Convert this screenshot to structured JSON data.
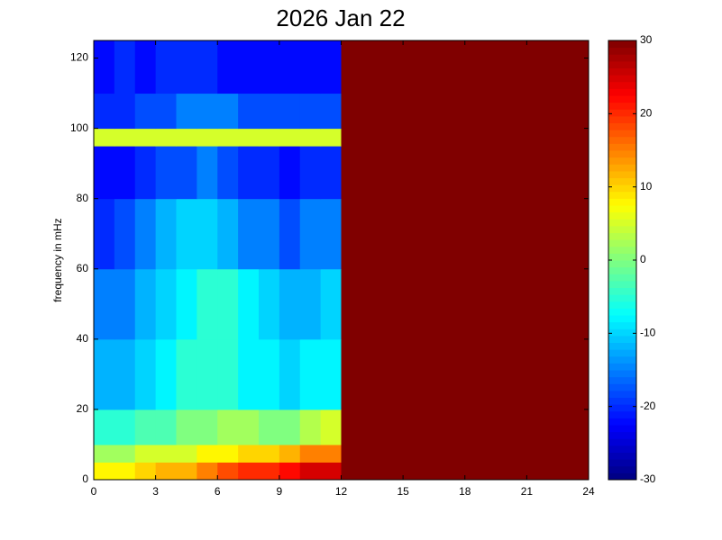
{
  "chart_data": {
    "type": "heatmap",
    "title": "2026 Jan 22",
    "ylabel": "frequency in mHz",
    "colormap": "jet",
    "x": [
      0,
      1,
      2,
      3,
      4,
      5,
      6,
      7,
      8,
      9,
      10,
      11,
      12,
      13,
      14,
      15,
      16,
      17,
      18,
      19,
      20,
      21,
      22,
      23,
      24
    ],
    "y": [
      0,
      5,
      10,
      20,
      40,
      60,
      80,
      95,
      100,
      110,
      125
    ],
    "z": [
      [
        8,
        8,
        10,
        12,
        12,
        15,
        18,
        20,
        20,
        22,
        25,
        25,
        30,
        30,
        30,
        30,
        30,
        30,
        30,
        30,
        30,
        30,
        30,
        30
      ],
      [
        2,
        2,
        5,
        5,
        5,
        8,
        8,
        10,
        10,
        12,
        15,
        15,
        30,
        30,
        30,
        30,
        30,
        30,
        30,
        30,
        30,
        30,
        30,
        30
      ],
      [
        -5,
        -5,
        -3,
        -3,
        0,
        0,
        2,
        2,
        0,
        0,
        3,
        5,
        30,
        30,
        30,
        30,
        30,
        30,
        30,
        30,
        30,
        30,
        30,
        30
      ],
      [
        -12,
        -12,
        -10,
        -8,
        -5,
        -5,
        -5,
        -8,
        -8,
        -10,
        -8,
        -8,
        30,
        30,
        30,
        30,
        30,
        30,
        30,
        30,
        30,
        30,
        30,
        30
      ],
      [
        -15,
        -15,
        -12,
        -10,
        -8,
        -5,
        -5,
        -8,
        -10,
        -12,
        -12,
        -10,
        30,
        30,
        30,
        30,
        30,
        30,
        30,
        30,
        30,
        30,
        30,
        30
      ],
      [
        -20,
        -18,
        -15,
        -12,
        -10,
        -10,
        -12,
        -15,
        -15,
        -18,
        -15,
        -15,
        30,
        30,
        30,
        30,
        30,
        30,
        30,
        30,
        30,
        30,
        30,
        30
      ],
      [
        -22,
        -22,
        -20,
        -18,
        -18,
        -15,
        -18,
        -20,
        -20,
        -22,
        -20,
        -20,
        30,
        30,
        30,
        30,
        30,
        30,
        30,
        30,
        30,
        30,
        30,
        30
      ],
      [
        5,
        5,
        5,
        5,
        5,
        5,
        5,
        5,
        5,
        5,
        5,
        5,
        30,
        30,
        30,
        30,
        30,
        30,
        30,
        30,
        30,
        30,
        30,
        30
      ],
      [
        -20,
        -20,
        -18,
        -18,
        -15,
        -15,
        -15,
        -18,
        -18,
        -18,
        -18,
        -18,
        30,
        30,
        30,
        30,
        30,
        30,
        30,
        30,
        30,
        30,
        30,
        30
      ],
      [
        -22,
        -20,
        -22,
        -20,
        -20,
        -20,
        -22,
        -22,
        -22,
        -22,
        -22,
        -22,
        30,
        30,
        30,
        30,
        30,
        30,
        30,
        30,
        30,
        30,
        30,
        30
      ]
    ],
    "xlim": [
      0,
      24
    ],
    "xticks": [
      0,
      3,
      6,
      9,
      12,
      15,
      18,
      21,
      24
    ],
    "ylim": [
      0,
      125
    ],
    "yticks": [
      0,
      20,
      40,
      60,
      80,
      100,
      120
    ],
    "clim": [
      -30,
      30
    ],
    "cticks": [
      -30,
      -20,
      -10,
      0,
      10,
      20,
      30
    ]
  }
}
